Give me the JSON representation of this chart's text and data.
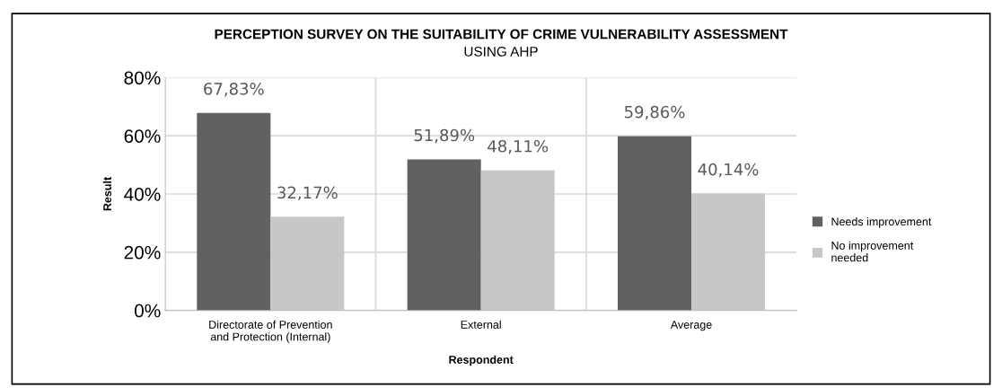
{
  "chart_data": {
    "type": "bar",
    "title": "PERCEPTION SURVEY ON THE SUITABILITY OF CRIME VULNERABILITY ASSESSMENT",
    "subtitle": "USING AHP",
    "xlabel": "Respondent",
    "ylabel": "Result",
    "categories": [
      "Directorate of Prevention\nand Protection (Internal)",
      "External",
      "Average"
    ],
    "series": [
      {
        "name": "Needs improvement",
        "color": "#616161",
        "values": [
          67.83,
          51.89,
          59.86
        ],
        "value_labels": [
          "67,83%",
          "51,89%",
          "59,86%"
        ]
      },
      {
        "name": "No improvement\nneeded",
        "color": "#c6c7c9",
        "values": [
          32.17,
          48.11,
          40.14
        ],
        "value_labels": [
          "32,17%",
          "48,11%",
          "40,14%"
        ]
      }
    ],
    "ylim": [
      0,
      80
    ],
    "yticks": [
      {
        "value": 0,
        "label": "0%"
      },
      {
        "value": 20,
        "label": "20%"
      },
      {
        "value": 40,
        "label": "40%"
      },
      {
        "value": 60,
        "label": "60%"
      },
      {
        "value": 80,
        "label": "80%"
      }
    ],
    "grid": true,
    "legend": "right"
  }
}
